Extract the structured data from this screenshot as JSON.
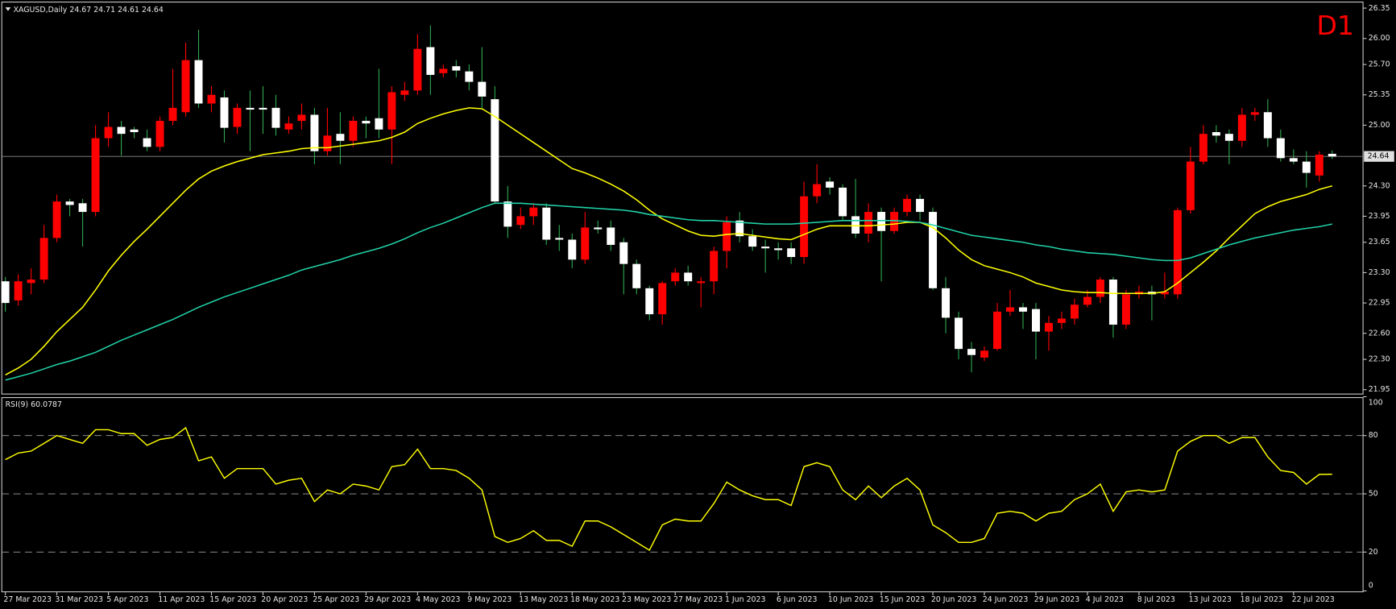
{
  "chart_data": [
    {
      "type": "candlestick",
      "title": "XAGUSD,Daily 24.67 24.71 24.61 24.64",
      "badge": "D1",
      "categories": [
        "27 Mar 2023",
        null,
        null,
        null,
        "31 Mar 2023",
        null,
        null,
        null,
        "5 Apr 2023",
        null,
        null,
        null,
        "11 Apr 2023",
        null,
        null,
        null,
        "15 Apr 2023",
        null,
        null,
        null,
        "20 Apr 2023",
        null,
        null,
        null,
        "25 Apr 2023",
        null,
        null,
        null,
        "29 Apr 2023",
        null,
        null,
        null,
        "4 May 2023",
        null,
        null,
        null,
        "9 May 2023",
        null,
        null,
        null,
        "13 May 2023",
        null,
        null,
        null,
        "18 May 2023",
        null,
        null,
        null,
        "23 May 2023",
        null,
        null,
        null,
        "27 May 2023",
        null,
        null,
        null,
        "1 Jun 2023",
        null,
        null,
        null,
        "6 Jun 2023",
        null,
        null,
        null,
        "10 Jun 2023",
        null,
        null,
        null,
        "15 Jun 2023",
        null,
        null,
        null,
        "20 Jun 2023",
        null,
        null,
        null,
        "24 Jun 2023",
        null,
        null,
        null,
        "29 Jun 2023",
        null,
        null,
        null,
        "4 Jul 2023",
        null,
        null,
        null,
        "8 Jul 2023",
        null,
        null,
        null,
        "13 Jul 2023",
        null,
        null,
        null,
        "18 Jul 2023",
        null,
        null,
        null,
        "22 Jul 2023",
        null,
        null,
        null
      ],
      "open": [
        23.2,
        22.98,
        23.18,
        23.22,
        23.7,
        24.12,
        24.1,
        24.0,
        24.85,
        24.98,
        24.95,
        24.85,
        24.75,
        25.05,
        25.15,
        25.75,
        25.25,
        25.32,
        24.98,
        25.2,
        25.2,
        25.2,
        24.95,
        25.05,
        25.12,
        24.7,
        24.9,
        24.82,
        25.05,
        25.08,
        24.95,
        25.35,
        25.4,
        25.9,
        25.6,
        25.68,
        25.62,
        25.5,
        25.3,
        24.12,
        23.85,
        23.95,
        24.05,
        23.7,
        23.68,
        23.45,
        23.82,
        23.82,
        23.65,
        23.4,
        23.12,
        22.82,
        23.2,
        23.3,
        23.18,
        23.2,
        23.55,
        23.9,
        23.72,
        23.6,
        23.58,
        23.58,
        23.48,
        24.18,
        24.35,
        24.28,
        23.95,
        23.75,
        24.0,
        23.78,
        24.0,
        24.15,
        24.0,
        23.12,
        22.78,
        22.42,
        22.32,
        22.42,
        22.85,
        22.9,
        22.88,
        22.62,
        22.72,
        22.77,
        22.93,
        23.02,
        23.22,
        22.7,
        23.05,
        23.08,
        23.05,
        23.05,
        24.02,
        24.58,
        24.92,
        24.9,
        24.82,
        25.12,
        25.15,
        24.85,
        24.62,
        24.58,
        24.42,
        24.67
      ],
      "high": [
        23.25,
        23.28,
        23.35,
        23.85,
        24.2,
        24.15,
        24.15,
        25.0,
        25.15,
        25.05,
        24.98,
        24.95,
        25.1,
        25.65,
        25.95,
        26.1,
        25.45,
        25.4,
        25.25,
        25.4,
        25.45,
        25.35,
        25.1,
        25.25,
        25.2,
        25.2,
        25.15,
        25.1,
        25.1,
        25.65,
        25.45,
        25.5,
        26.05,
        26.15,
        25.7,
        25.75,
        25.7,
        25.9,
        25.45,
        24.3,
        24.05,
        24.1,
        24.1,
        23.85,
        23.75,
        24.0,
        23.9,
        23.9,
        23.7,
        23.45,
        23.15,
        23.2,
        23.35,
        23.38,
        23.25,
        23.6,
        23.95,
        24.0,
        23.8,
        23.68,
        23.65,
        23.65,
        24.35,
        24.55,
        24.4,
        24.32,
        24.38,
        24.1,
        24.05,
        24.05,
        24.2,
        24.2,
        24.05,
        23.25,
        22.85,
        22.5,
        22.45,
        22.95,
        23.1,
        22.95,
        22.95,
        22.8,
        22.85,
        23.0,
        23.1,
        23.25,
        23.25,
        23.1,
        23.15,
        23.15,
        23.3,
        24.05,
        24.75,
        25.0,
        25.0,
        24.95,
        25.2,
        25.2,
        25.3,
        24.95,
        24.72,
        24.7,
        24.7,
        24.71
      ],
      "low": [
        22.85,
        22.92,
        23.05,
        23.18,
        23.65,
        23.95,
        23.6,
        23.95,
        24.75,
        24.65,
        24.85,
        24.7,
        24.7,
        25.0,
        25.1,
        25.2,
        25.15,
        24.8,
        24.9,
        24.7,
        24.9,
        24.88,
        24.9,
        24.95,
        24.55,
        24.65,
        24.55,
        24.75,
        24.85,
        24.85,
        24.55,
        25.28,
        25.35,
        25.35,
        25.55,
        25.55,
        25.4,
        25.2,
        24.1,
        23.7,
        23.8,
        23.85,
        23.62,
        23.55,
        23.35,
        23.4,
        23.75,
        23.55,
        23.05,
        23.05,
        22.75,
        22.7,
        23.15,
        23.15,
        22.9,
        23.05,
        23.35,
        23.65,
        23.55,
        23.3,
        23.45,
        23.4,
        23.4,
        24.1,
        24.2,
        23.9,
        23.7,
        23.65,
        23.2,
        23.75,
        23.95,
        23.9,
        23.1,
        22.6,
        22.3,
        22.15,
        22.28,
        22.4,
        22.8,
        22.65,
        22.3,
        22.4,
        22.65,
        22.7,
        22.9,
        22.95,
        22.55,
        22.65,
        23.0,
        22.75,
        23.0,
        23.0,
        23.98,
        24.55,
        24.8,
        24.55,
        24.75,
        25.05,
        24.75,
        24.58,
        24.55,
        24.28,
        24.35,
        24.61
      ],
      "close": [
        22.95,
        23.2,
        23.22,
        23.7,
        24.12,
        24.08,
        24.0,
        24.85,
        24.98,
        24.9,
        24.92,
        24.75,
        25.05,
        25.2,
        25.75,
        25.25,
        25.35,
        24.97,
        25.2,
        25.18,
        25.18,
        24.97,
        25.02,
        25.12,
        24.7,
        24.88,
        24.82,
        25.05,
        25.02,
        24.95,
        25.38,
        25.4,
        25.88,
        25.58,
        25.65,
        25.63,
        25.5,
        25.33,
        24.12,
        23.83,
        23.95,
        24.05,
        23.68,
        23.68,
        23.45,
        23.82,
        23.8,
        23.62,
        23.4,
        23.12,
        22.82,
        23.18,
        23.3,
        23.2,
        23.2,
        23.55,
        23.88,
        23.72,
        23.6,
        23.58,
        23.56,
        23.48,
        24.18,
        24.32,
        24.28,
        23.95,
        23.75,
        24.0,
        23.78,
        24.0,
        24.15,
        24.0,
        23.12,
        22.78,
        22.42,
        22.35,
        22.4,
        22.85,
        22.9,
        22.85,
        22.62,
        22.72,
        22.77,
        22.93,
        23.02,
        23.22,
        22.7,
        23.05,
        23.08,
        23.05,
        23.08,
        24.02,
        24.58,
        24.9,
        24.88,
        24.82,
        25.12,
        25.15,
        24.85,
        24.62,
        24.58,
        24.45,
        24.66,
        24.64
      ],
      "up_color": "#ff0000",
      "down_color": "#ffffff",
      "up_wick_color": "#ff0000",
      "down_wick_color": "#2fa84f",
      "series": [
        {
          "color": "#ffff00",
          "values": [
            22.12,
            22.2,
            22.3,
            22.45,
            22.62,
            22.76,
            22.9,
            23.1,
            23.32,
            23.5,
            23.66,
            23.8,
            23.95,
            24.1,
            24.25,
            24.38,
            24.47,
            24.53,
            24.58,
            24.62,
            24.66,
            24.68,
            24.7,
            24.73,
            24.74,
            24.74,
            24.76,
            24.78,
            24.8,
            24.82,
            24.86,
            24.92,
            25.02,
            25.08,
            25.13,
            25.17,
            25.2,
            25.19,
            25.1,
            25.0,
            24.9,
            24.8,
            24.7,
            24.6,
            24.5,
            24.45,
            24.39,
            24.32,
            24.24,
            24.14,
            24.02,
            23.92,
            23.85,
            23.78,
            23.73,
            23.72,
            23.74,
            23.75,
            23.73,
            23.71,
            23.69,
            23.68,
            23.74,
            23.8,
            23.84,
            23.84,
            23.84,
            23.84,
            23.85,
            23.86,
            23.88,
            23.88,
            23.82,
            23.7,
            23.56,
            23.45,
            23.38,
            23.34,
            23.3,
            23.25,
            23.18,
            23.14,
            23.1,
            23.08,
            23.07,
            23.07,
            23.06,
            23.06,
            23.06,
            23.06,
            23.08,
            23.18,
            23.3,
            23.42,
            23.55,
            23.7,
            23.84,
            23.98,
            24.06,
            24.12,
            24.16,
            24.2,
            24.26,
            24.3
          ]
        },
        {
          "color": "#20d2a8",
          "values": [
            22.06,
            22.1,
            22.14,
            22.19,
            22.24,
            22.28,
            22.33,
            22.38,
            22.45,
            22.52,
            22.58,
            22.64,
            22.7,
            22.76,
            22.83,
            22.9,
            22.96,
            23.02,
            23.07,
            23.12,
            23.17,
            23.22,
            23.27,
            23.33,
            23.37,
            23.41,
            23.45,
            23.5,
            23.54,
            23.58,
            23.63,
            23.69,
            23.76,
            23.82,
            23.87,
            23.93,
            23.99,
            24.05,
            24.1,
            24.1,
            24.1,
            24.09,
            24.08,
            24.07,
            24.06,
            24.05,
            24.04,
            24.03,
            24.02,
            24.0,
            23.97,
            23.95,
            23.93,
            23.91,
            23.9,
            23.9,
            23.89,
            23.88,
            23.87,
            23.86,
            23.86,
            23.86,
            23.87,
            23.88,
            23.89,
            23.9,
            23.9,
            23.9,
            23.9,
            23.9,
            23.89,
            23.88,
            23.85,
            23.81,
            23.77,
            23.73,
            23.71,
            23.69,
            23.67,
            23.65,
            23.62,
            23.6,
            23.57,
            23.55,
            23.53,
            23.52,
            23.51,
            23.49,
            23.47,
            23.45,
            23.44,
            23.44,
            23.47,
            23.52,
            23.57,
            23.62,
            23.66,
            23.7,
            23.73,
            23.76,
            23.79,
            23.81,
            23.83,
            23.86
          ]
        }
      ],
      "price_line": 24.64,
      "ylim": [
        21.9,
        26.42
      ],
      "yticks": [
        21.95,
        {
          "value": 22.3,
          "label": "22.30"
        },
        {
          "value": 22.6,
          "label": "22.60"
        },
        22.95,
        {
          "value": 23.3,
          "label": "23.30"
        },
        23.65,
        23.95,
        {
          "value": 24.3,
          "label": "24.30"
        },
        {
          "value": 25,
          "label": "25.00"
        },
        25.35,
        {
          "value": 25.7,
          "label": "25.70"
        },
        {
          "value": 26,
          "label": "26.00"
        },
        26.35
      ]
    },
    {
      "type": "line",
      "title": "RSI(9) 60.0787",
      "color": "#ffff00",
      "values": [
        67.6,
        71,
        72,
        76,
        80,
        78,
        76,
        83,
        83,
        81,
        81,
        75,
        78,
        79,
        84,
        67,
        69,
        58,
        63,
        63,
        63,
        55,
        57,
        58,
        46,
        52,
        50,
        55,
        54,
        52,
        64,
        65,
        73,
        63,
        63,
        62,
        58,
        52,
        28,
        25,
        27,
        31,
        26,
        26,
        23,
        36,
        36,
        33,
        29,
        25,
        21,
        34,
        37,
        36,
        36,
        45,
        56,
        52,
        49,
        47,
        47,
        44,
        64,
        66,
        64,
        52,
        47,
        54,
        48,
        54,
        58,
        52,
        34,
        30,
        25,
        25,
        27,
        40,
        41,
        40,
        36,
        40,
        41,
        47,
        50,
        55,
        41,
        51,
        52,
        51,
        52,
        72,
        77,
        80,
        80,
        76,
        79,
        79,
        69,
        62,
        61,
        55,
        60,
        60.0787
      ],
      "levels": [
        20,
        50,
        80
      ],
      "ylim": [
        0,
        100
      ],
      "yticks": [
        0,
        20,
        50,
        80,
        100
      ]
    }
  ]
}
